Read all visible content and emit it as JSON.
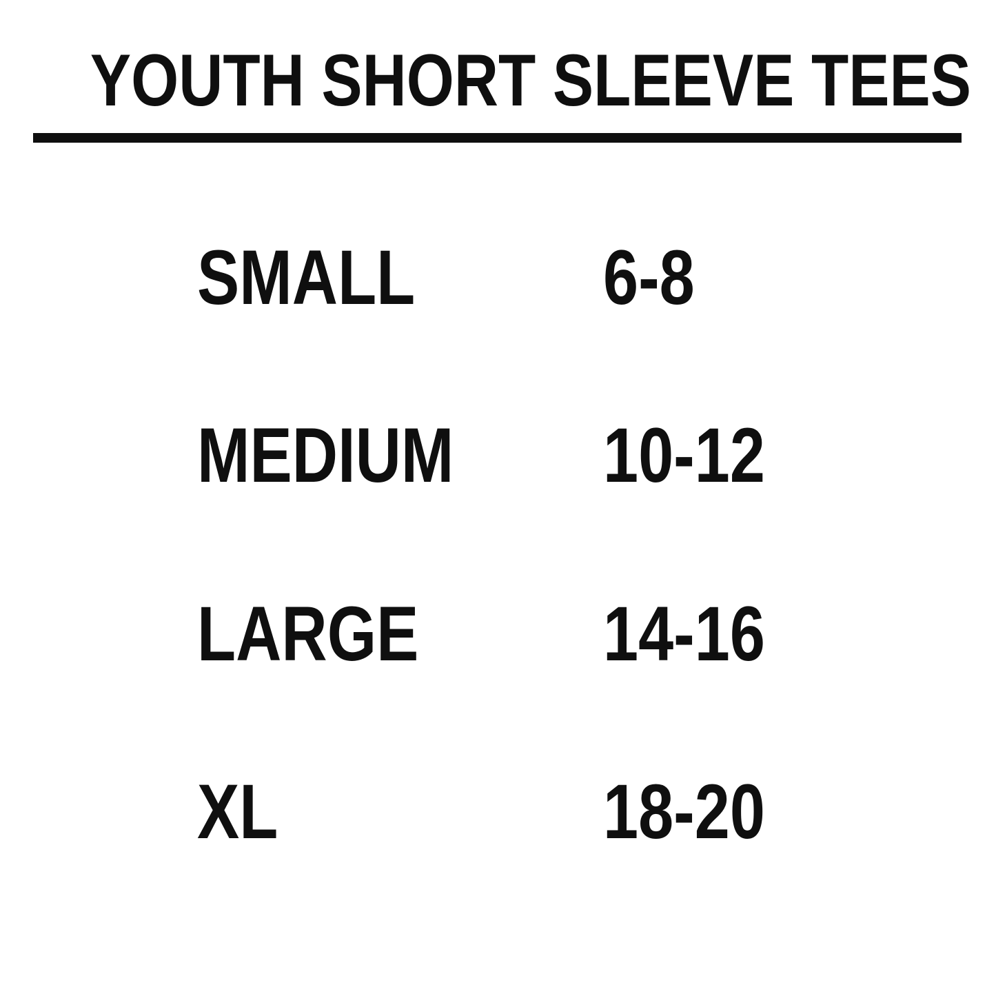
{
  "title": "YOUTH SHORT SLEEVE TEES",
  "size_chart": {
    "rows": [
      {
        "size": "SMALL",
        "range": "6-8"
      },
      {
        "size": "MEDIUM",
        "range": "10-12"
      },
      {
        "size": "LARGE",
        "range": "14-16"
      },
      {
        "size": "XL",
        "range": "18-20"
      }
    ]
  },
  "colors": {
    "background": "#ffffff",
    "text": "#0f0f0f",
    "divider": "#0f0f0f"
  }
}
